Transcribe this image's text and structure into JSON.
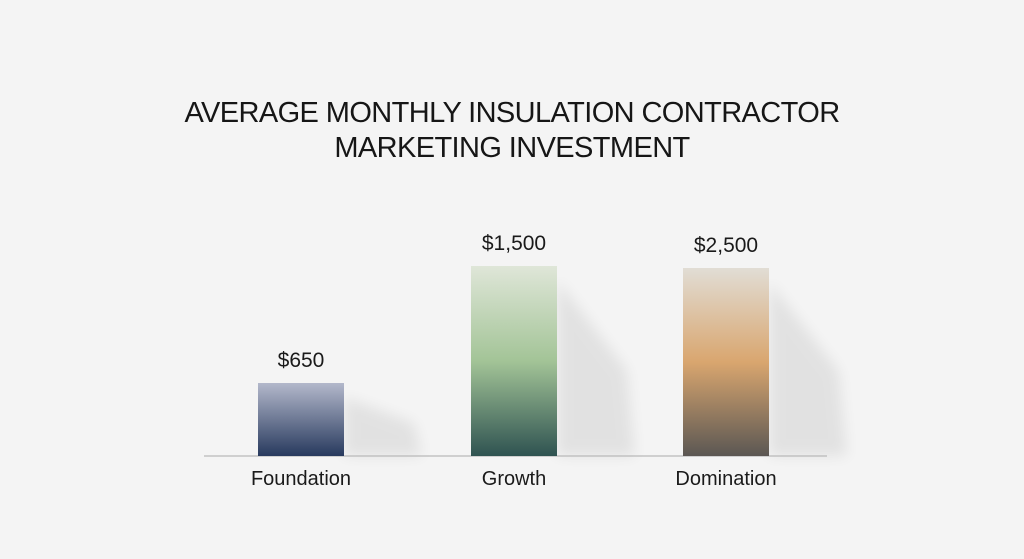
{
  "chart_data": {
    "type": "bar",
    "title": [
      "AVERAGE MONTHLY INSULATION CONTRACTOR",
      "MARKETING INVESTMENT"
    ],
    "categories": [
      "Foundation",
      "Growth",
      "Domination"
    ],
    "values": [
      650,
      1500,
      2500
    ],
    "value_labels": [
      "$650",
      "$1,500",
      "$2,500"
    ],
    "bar_gradients": [
      [
        "#b3b8cb",
        "#283a5e"
      ],
      [
        "#dfe6d8",
        "#a3c497",
        "#2f5351"
      ],
      [
        "#e1ddd5",
        "#d9a66f",
        "#5b5753"
      ]
    ],
    "xlabel": "",
    "ylabel": "",
    "grid": false,
    "legend": "none"
  }
}
